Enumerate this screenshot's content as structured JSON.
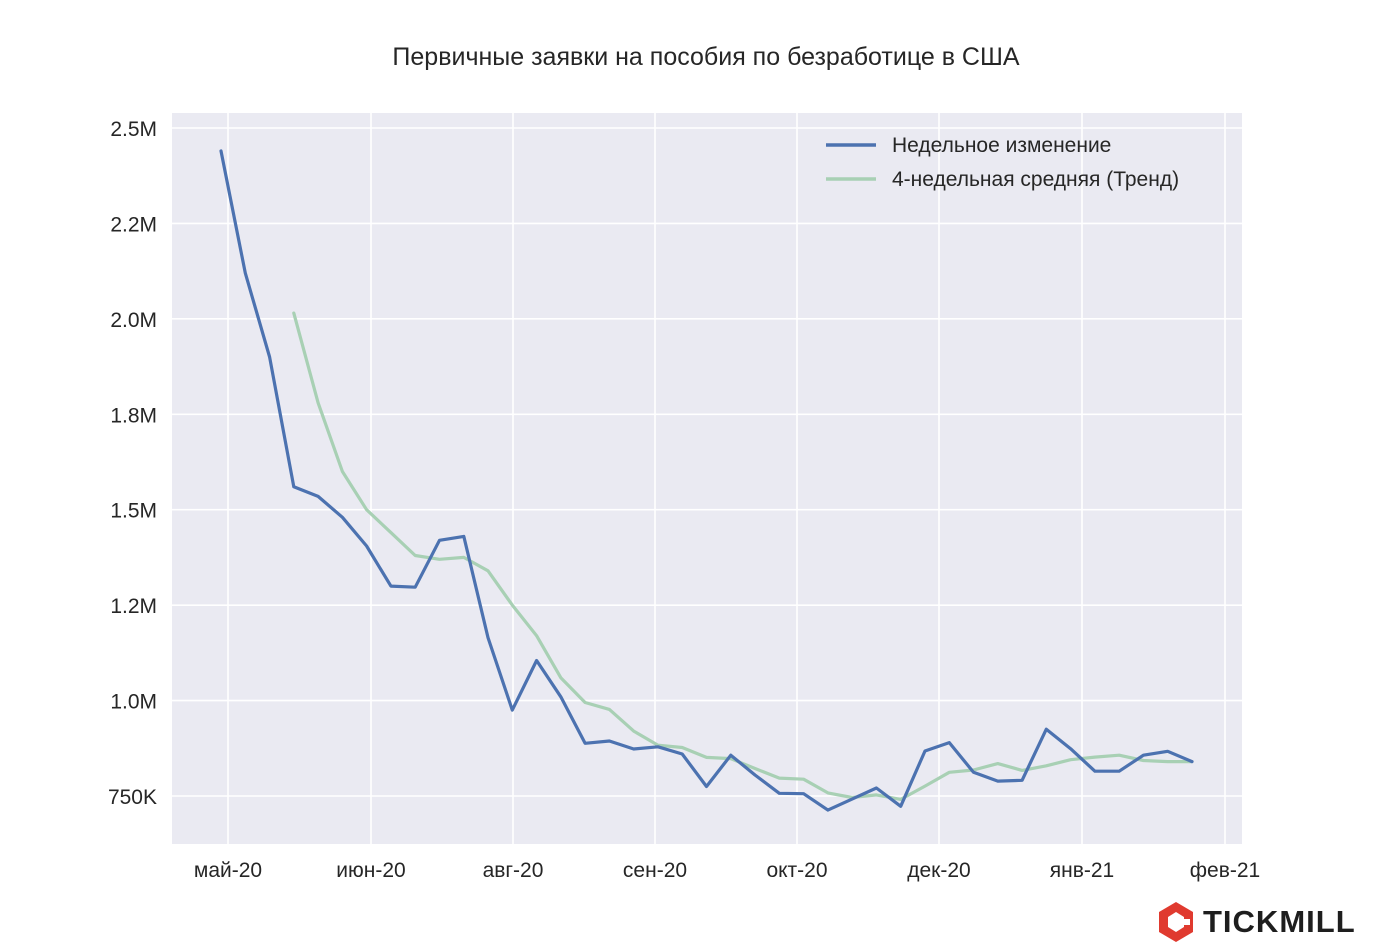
{
  "chart_data": {
    "type": "line",
    "title": "Первичные заявки на пособия по безработице в США",
    "xlabel": "",
    "ylabel": "",
    "ylim": [
      650000,
      2520000
    ],
    "x_ticks": [
      "май-20",
      "июн-20",
      "авг-20",
      "сен-20",
      "окт-20",
      "дек-20",
      "янв-21",
      "фев-21"
    ],
    "y_ticks": [
      {
        "value": 750000,
        "label": "750K"
      },
      {
        "value": 1000000,
        "label": "1.0M"
      },
      {
        "value": 1250000,
        "label": "1.2M"
      },
      {
        "value": 1500000,
        "label": "1.5M"
      },
      {
        "value": 1750000,
        "label": "1.8M"
      },
      {
        "value": 2000000,
        "label": "2.0M"
      },
      {
        "value": 2250000,
        "label": "2.2M"
      },
      {
        "value": 2500000,
        "label": "2.5M"
      }
    ],
    "x": [
      "2020-04-25",
      "2020-05-02",
      "2020-05-09",
      "2020-05-16",
      "2020-05-23",
      "2020-05-30",
      "2020-06-06",
      "2020-06-13",
      "2020-06-20",
      "2020-06-27",
      "2020-07-04",
      "2020-07-11",
      "2020-07-18",
      "2020-07-25",
      "2020-08-01",
      "2020-08-08",
      "2020-08-15",
      "2020-08-22",
      "2020-08-29",
      "2020-09-05",
      "2020-09-12",
      "2020-09-19",
      "2020-09-26",
      "2020-10-03",
      "2020-10-10",
      "2020-10-17",
      "2020-10-24",
      "2020-10-31",
      "2020-11-07",
      "2020-11-14",
      "2020-11-21",
      "2020-11-28",
      "2020-12-05",
      "2020-12-12",
      "2020-12-19",
      "2020-12-26",
      "2021-01-02",
      "2021-01-09",
      "2021-01-16",
      "2021-01-23",
      "2021-01-30"
    ],
    "grid": true,
    "legend_position": "top-right",
    "series": [
      {
        "name": "Недельное изменение",
        "color": "#4c72b0",
        "values": [
          2440000,
          2120000,
          1900000,
          1560000,
          1535000,
          1480000,
          1405000,
          1300000,
          1297000,
          1420000,
          1430000,
          1165000,
          975000,
          1105000,
          1010000,
          888000,
          894000,
          873000,
          879000,
          860000,
          775000,
          857000,
          805000,
          757000,
          756000,
          713000,
          742000,
          771000,
          723000,
          868000,
          890000,
          812000,
          789000,
          791000,
          925000,
          874000,
          815000,
          815000,
          857000,
          867000,
          840000
        ]
      },
      {
        "name": "4-недельная средняя (Тренд)",
        "color": "#a8d0b4",
        "values": [
          null,
          null,
          null,
          2015000,
          1780000,
          1600000,
          1500000,
          1440000,
          1380000,
          1370000,
          1375000,
          1340000,
          1250000,
          1170000,
          1060000,
          995000,
          977000,
          920000,
          883000,
          877000,
          851000,
          848000,
          822000,
          797000,
          794000,
          758000,
          746000,
          753000,
          741000,
          776000,
          812000,
          818000,
          835000,
          817000,
          829000,
          845000,
          852000,
          857000,
          843000,
          840000,
          840000
        ]
      }
    ]
  },
  "logo": {
    "text": "TICKMILL",
    "icon": "tickmill-hexagon-icon",
    "color": "#e03a2f"
  }
}
